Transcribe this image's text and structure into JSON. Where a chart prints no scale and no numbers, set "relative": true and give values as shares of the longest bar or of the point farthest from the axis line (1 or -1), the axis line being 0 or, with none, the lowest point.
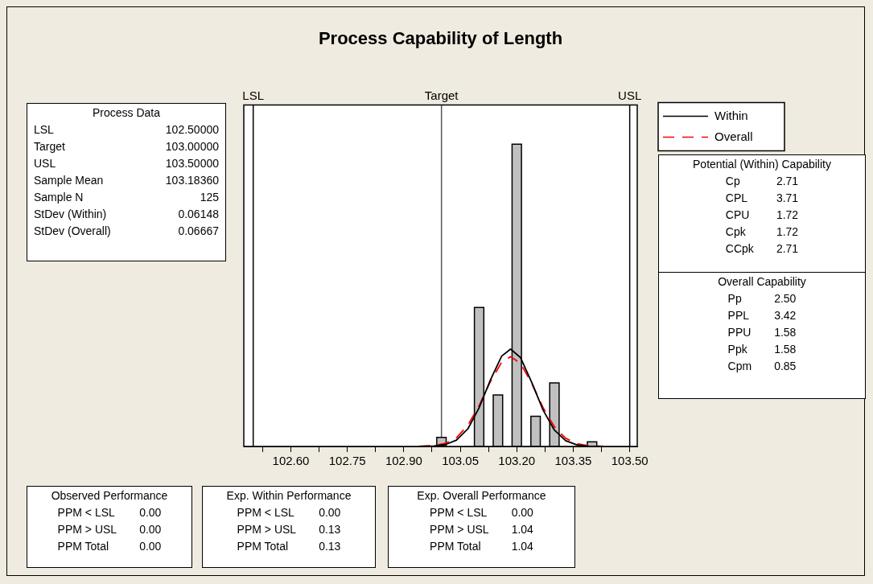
{
  "chart_data": {
    "type": "histogram",
    "title": "Process Capability of Length",
    "relative": true,
    "bins": [
      102.9875,
      103.0125,
      103.0375,
      103.0625,
      103.0875,
      103.1125,
      103.1375,
      103.1625,
      103.1875,
      103.2125,
      103.2375,
      103.2625,
      103.2875,
      103.3125,
      103.3375,
      103.3625,
      103.3875,
      103.4125
    ],
    "values": [
      0.03,
      0,
      0,
      0,
      0.46,
      0,
      0.17,
      0,
      1,
      0,
      0.1,
      0,
      0.21,
      0,
      0,
      0,
      0.015
    ],
    "color": "#c0c0c0",
    "series": [
      {
        "name": "Within",
        "type": "line",
        "color": "#000000",
        "line_style": "solid",
        "x": [
          102.94,
          102.98,
          103.01,
          103.04,
          103.07,
          103.1,
          103.13,
          103.16,
          103.1836,
          103.21,
          103.24,
          103.27,
          103.3,
          103.33,
          103.36,
          103.39,
          103.43
        ],
        "values": [
          0.0001,
          0.0013,
          0.006,
          0.021,
          0.058,
          0.128,
          0.22,
          0.299,
          0.322,
          0.294,
          0.211,
          0.12,
          0.054,
          0.019,
          0.005,
          0.0011,
          0.0001
        ]
      },
      {
        "name": "Overall",
        "type": "line",
        "color": "#ff0000",
        "line_style": "dashed",
        "x": [
          102.94,
          102.98,
          103.01,
          103.04,
          103.07,
          103.1,
          103.13,
          103.16,
          103.1836,
          103.21,
          103.24,
          103.27,
          103.3,
          103.33,
          103.36,
          103.39,
          103.43
        ],
        "values": [
          0.0004,
          0.003,
          0.01,
          0.029,
          0.07,
          0.135,
          0.215,
          0.279,
          0.297,
          0.275,
          0.208,
          0.128,
          0.065,
          0.027,
          0.009,
          0.0025,
          0.0003
        ]
      }
    ],
    "xlim": [
      102.475,
      103.52
    ],
    "xticks": [
      {
        "value": 102.525,
        "label": null
      },
      {
        "value": 102.6,
        "label": "102.60"
      },
      {
        "value": 102.675,
        "label": null
      },
      {
        "value": 102.75,
        "label": "102.75"
      },
      {
        "value": 102.825,
        "label": null
      },
      {
        "value": 102.9,
        "label": "102.90"
      },
      {
        "value": 102.975,
        "label": null
      },
      {
        "value": 103.05,
        "label": "103.05"
      },
      {
        "value": 103.125,
        "label": null
      },
      {
        "value": 103.2,
        "label": "103.20"
      },
      {
        "value": 103.275,
        "label": null
      },
      {
        "value": 103.35,
        "label": "103.35"
      },
      {
        "value": 103.425,
        "label": null
      },
      {
        "value": 103.5,
        "label": "103.50"
      }
    ],
    "ref_lines": [
      {
        "axis": "x",
        "value": 102.5,
        "label": "LSL",
        "color": "#000000"
      },
      {
        "axis": "x",
        "value": 103,
        "label": "Target",
        "color": "#555555"
      },
      {
        "axis": "x",
        "value": 103.5,
        "label": "USL",
        "color": "#000000"
      }
    ],
    "legend": "top right",
    "annotations": [
      "Process Data\nLSL\t102.50000\nTarget\t103.00000\nUSL\t103.50000\nSample Mean\t103.18360\nSample N\t125\nStDev (Within)\t0.06148\nStDev (Overall)\t0.06667",
      "Potential (Within) Capability\nCp\t2.71\nCPL\t3.71\nCPU\t1.72\nCpk\t1.72\nCCpk\t2.71",
      "Overall Capability\nPp\t2.50\nPPL\t3.42\nPPU\t1.58\nPpk\t1.58\nCpm\t0.85",
      "Observed Performance\nPPM < LSL\t0.00\nPPM > USL\t0.00\nPPM Total\t0.00",
      "Exp. Within Performance\nPPM < LSL\t0.00\nPPM > USL\t0.13\nPPM Total\t0.13",
      "Exp. Overall Performance\nPPM < LSL\t0.00\nPPM > USL\t1.04\nPPM Total\t1.04"
    ]
  }
}
